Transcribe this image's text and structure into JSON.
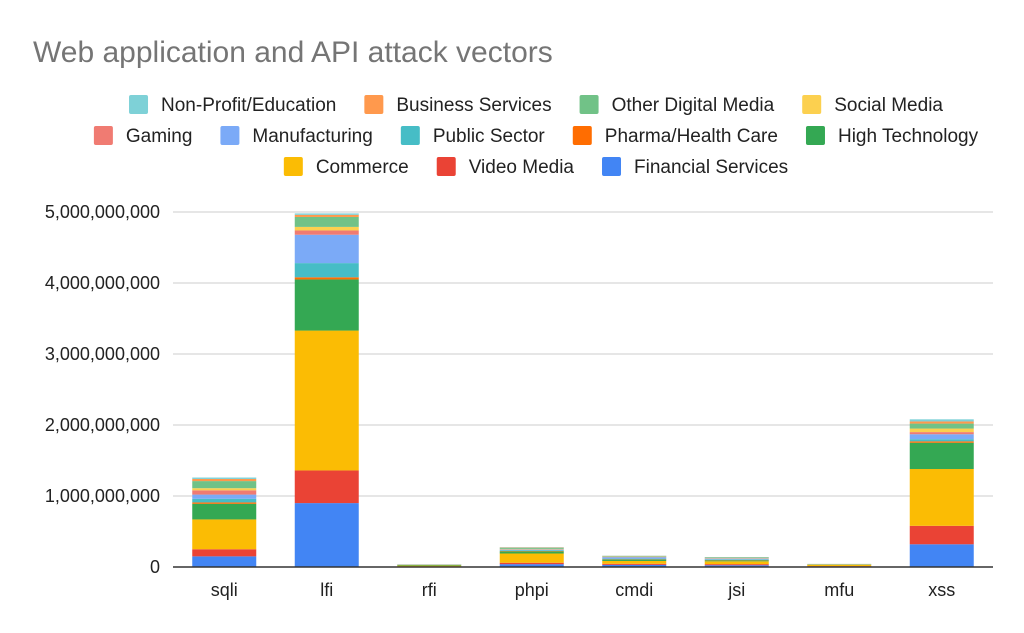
{
  "chart_data": {
    "type": "bar",
    "stacked": true,
    "title": "Web application and API attack vectors",
    "xlabel": "",
    "ylabel": "",
    "ylim": [
      0,
      5000000000
    ],
    "yticks": [
      0,
      1000000000,
      2000000000,
      3000000000,
      4000000000,
      5000000000
    ],
    "ytick_labels": [
      "0",
      "1,000,000,000",
      "2,000,000,000",
      "3,000,000,000",
      "4,000,000,000",
      "5,000,000,000"
    ],
    "grid": true,
    "legend_position": "top",
    "categories": [
      "sqli",
      "lfi",
      "rfi",
      "phpi",
      "cmdi",
      "jsi",
      "mfu",
      "xss"
    ],
    "series": [
      {
        "name": "Financial Services",
        "color": "#4285f4",
        "values": [
          150000000,
          900000000,
          5000000,
          40000000,
          30000000,
          25000000,
          8000000,
          320000000
        ]
      },
      {
        "name": "Video Media",
        "color": "#ea4335",
        "values": [
          100000000,
          460000000,
          3000000,
          20000000,
          15000000,
          15000000,
          4000000,
          260000000
        ]
      },
      {
        "name": "Commerce",
        "color": "#fbbc04",
        "values": [
          420000000,
          1970000000,
          12000000,
          130000000,
          40000000,
          40000000,
          18000000,
          800000000
        ]
      },
      {
        "name": "High Technology",
        "color": "#34a853",
        "values": [
          220000000,
          720000000,
          8000000,
          30000000,
          20000000,
          15000000,
          4000000,
          370000000
        ]
      },
      {
        "name": "Pharma/Health Care",
        "color": "#ff6d01",
        "values": [
          20000000,
          30000000,
          1000000,
          5000000,
          5000000,
          5000000,
          1000000,
          20000000
        ]
      },
      {
        "name": "Public Sector",
        "color": "#46bdc6",
        "values": [
          50000000,
          200000000,
          2000000,
          10000000,
          8000000,
          8000000,
          1000000,
          30000000
        ]
      },
      {
        "name": "Manufacturing",
        "color": "#7baaf7",
        "values": [
          60000000,
          400000000,
          2000000,
          10000000,
          20000000,
          10000000,
          1000000,
          70000000
        ]
      },
      {
        "name": "Gaming",
        "color": "#f07b72",
        "values": [
          60000000,
          60000000,
          1000000,
          5000000,
          5000000,
          5000000,
          1000000,
          30000000
        ]
      },
      {
        "name": "Social Media",
        "color": "#fcd04f",
        "values": [
          30000000,
          50000000,
          1000000,
          5000000,
          3000000,
          3000000,
          3000000,
          50000000
        ]
      },
      {
        "name": "Other Digital Media",
        "color": "#71c287",
        "values": [
          100000000,
          140000000,
          2000000,
          15000000,
          8000000,
          8000000,
          1000000,
          70000000
        ]
      },
      {
        "name": "Business Services",
        "color": "#ff994d",
        "values": [
          30000000,
          30000000,
          1000000,
          5000000,
          3000000,
          3000000,
          1000000,
          30000000
        ]
      },
      {
        "name": "Non-Profit/Education",
        "color": "#7ed1d7",
        "values": [
          20000000,
          20000000,
          1000000,
          5000000,
          3000000,
          3000000,
          1000000,
          30000000
        ]
      }
    ]
  },
  "legend_rows": [
    [
      "Non-Profit/Education",
      "Business Services",
      "Other Digital Media",
      "Social Media"
    ],
    [
      "Gaming",
      "Manufacturing",
      "Public Sector",
      "Pharma/Health Care",
      "High Technology"
    ],
    [
      "Commerce",
      "Video Media",
      "Financial Services"
    ]
  ]
}
